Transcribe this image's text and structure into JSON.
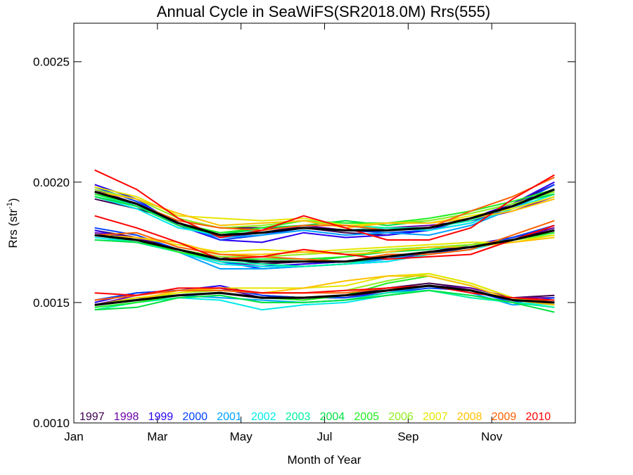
{
  "chart_data": {
    "type": "line",
    "title": "Annual Cycle in SeaWiFS(SR2018.0M) Rrs(555)",
    "xlabel": "Month of Year",
    "ylabel_main": "Rrs (str",
    "ylabel_sup": "-1",
    "ylabel_close": ")",
    "xlim": [
      0,
      12
    ],
    "ylim": [
      0.001,
      0.00266
    ],
    "x_ticks": [
      {
        "value": 0,
        "label": "Jan"
      },
      {
        "value": 2,
        "label": "Mar"
      },
      {
        "value": 4,
        "label": "May"
      },
      {
        "value": 6,
        "label": "Jul"
      },
      {
        "value": 8,
        "label": "Sep"
      },
      {
        "value": 10,
        "label": "Nov"
      }
    ],
    "y_ticks": [
      {
        "value": 0.001,
        "label": "0.0010"
      },
      {
        "value": 0.0015,
        "label": "0.0015"
      },
      {
        "value": 0.002,
        "label": "0.0020"
      },
      {
        "value": 0.0025,
        "label": "0.0025"
      }
    ],
    "x": [
      0.5,
      1.5,
      2.5,
      3.5,
      4.5,
      5.5,
      6.5,
      7.5,
      8.5,
      9.5,
      10.5,
      11.5
    ],
    "legend_position": "bottom",
    "groups": [
      {
        "climatology": [
          0.00196,
          0.00191,
          0.00183,
          0.00178,
          0.00179,
          0.00181,
          0.0018,
          0.0018,
          0.00181,
          0.00185,
          0.0019,
          0.00197
        ],
        "offsets": [
          [
            -3e-05,
            -2e-05,
            1e-05,
            3e-05,
            2e-05,
            0.0,
            -1e-05,
            -2e-05,
            -1e-05,
            0.0,
            1e-05,
            2e-05
          ],
          [
            1e-05,
            0.0,
            -1e-05,
            -1e-05,
            0.0,
            1e-05,
            0.0,
            1e-05,
            1e-05,
            -1e-05,
            -2e-05,
            -3e-05
          ],
          [
            3e-05,
            2e-05,
            -1e-05,
            -2e-05,
            -4e-05,
            -2e-05,
            -3e-05,
            -2e-05,
            -1e-05,
            0.0,
            1e-05,
            3e-05
          ],
          [
            2e-05,
            1e-05,
            0.0,
            -2e-05,
            -1e-05,
            0.0,
            0.0,
            -1e-05,
            -1e-05,
            -2e-05,
            0.0,
            2e-05
          ],
          [
            0.0,
            -1e-05,
            -1e-05,
            -1e-05,
            -1e-05,
            -1e-05,
            -2e-05,
            -1e-05,
            -3e-05,
            -3e-05,
            -1e-05,
            0.0
          ],
          [
            -2e-05,
            -2e-05,
            -2e-05,
            0.0,
            0.0,
            0.0,
            0.0,
            1e-05,
            -1e-05,
            -2e-05,
            -1e-05,
            -2e-05
          ],
          [
            -1e-05,
            -1e-05,
            0.0,
            1e-05,
            1e-05,
            1e-05,
            2e-05,
            1e-05,
            0.0,
            -1e-05,
            0.0,
            -1e-05
          ],
          [
            -2e-05,
            -1e-05,
            -1e-05,
            0.0,
            2e-05,
            1e-05,
            4e-05,
            2e-05,
            3e-05,
            2e-05,
            1e-05,
            -2e-05
          ],
          [
            -1e-05,
            0.0,
            0.0,
            1e-05,
            2e-05,
            3e-05,
            3e-05,
            3e-05,
            4e-05,
            3e-05,
            2e-05,
            0.0
          ],
          [
            1e-05,
            2e-05,
            2e-05,
            3e-05,
            3e-05,
            3e-05,
            2e-05,
            3e-05,
            3e-05,
            2e-05,
            1e-05,
            -1e-05
          ],
          [
            2e-05,
            3e-05,
            3e-05,
            7e-05,
            5e-05,
            4e-05,
            2e-05,
            3e-05,
            2e-05,
            1e-05,
            -1e-05,
            -3e-05
          ],
          [
            0.0,
            2e-05,
            4e-05,
            4e-05,
            4e-05,
            3e-05,
            1e-05,
            3e-05,
            2e-05,
            0.0,
            -2e-05,
            -4e-05
          ],
          [
            0.0,
            0.0,
            1e-05,
            3e-05,
            1e-05,
            1e-05,
            2e-05,
            0.0,
            0.0,
            3e-05,
            4e-05,
            5e-05
          ],
          [
            9e-05,
            6e-05,
            2e-05,
            -1e-05,
            1e-05,
            5e-05,
            1e-05,
            -4e-05,
            -5e-05,
            -4e-05,
            3e-05,
            6e-05
          ]
        ]
      },
      {
        "climatology": [
          0.00178,
          0.00176,
          0.00172,
          0.00168,
          0.00167,
          0.00167,
          0.00167,
          0.00169,
          0.00171,
          0.00173,
          0.00176,
          0.0018
        ],
        "offsets": [
          [
            2e-05,
            1e-05,
            0.0,
            1e-05,
            -1e-05,
            0.0,
            0.0,
            -1e-05,
            0.0,
            0.0,
            1e-05,
            1e-05
          ],
          [
            1e-05,
            1e-05,
            -1e-05,
            -1e-05,
            -2e-05,
            -1e-05,
            0.0,
            -1e-05,
            -1e-05,
            0.0,
            0.0,
            1e-05
          ],
          [
            2e-05,
            0.0,
            -1e-05,
            -2e-05,
            -2e-05,
            -1e-05,
            0.0,
            -1e-05,
            0.0,
            1e-05,
            1e-05,
            2e-05
          ],
          [
            3e-05,
            2e-05,
            0.0,
            -1e-05,
            -3e-05,
            -2e-05,
            -1e-05,
            -2e-05,
            -1e-05,
            0.0,
            1e-05,
            2e-05
          ],
          [
            0.0,
            0.0,
            -1e-05,
            -4e-05,
            -3e-05,
            -2e-05,
            -1e-05,
            -1e-05,
            0.0,
            0.0,
            0.0,
            0.0
          ],
          [
            -1e-05,
            -1e-05,
            -1e-05,
            -2e-05,
            -2e-05,
            -2e-05,
            -1e-05,
            -2e-05,
            -1e-05,
            -1e-05,
            0.0,
            -2e-05
          ],
          [
            0.0,
            -1e-05,
            -1e-05,
            -1e-05,
            -1e-05,
            -2e-05,
            -1e-05,
            0.0,
            0.0,
            0.0,
            0.0,
            0.0
          ],
          [
            -2e-05,
            -1e-05,
            0.0,
            0.0,
            0.0,
            0.0,
            2e-05,
            2e-05,
            1e-05,
            1e-05,
            0.0,
            -1e-05
          ],
          [
            0.0,
            0.0,
            -1e-05,
            0.0,
            1e-05,
            1e-05,
            2e-05,
            3e-05,
            2e-05,
            1e-05,
            0.0,
            -1e-05
          ],
          [
            0.0,
            0.0,
            0.0,
            1e-05,
            2e-05,
            3e-05,
            4e-05,
            3e-05,
            2e-05,
            1e-05,
            0.0,
            -2e-05
          ],
          [
            0.0,
            1e-05,
            2e-05,
            3e-05,
            5e-05,
            4e-05,
            5e-05,
            4e-05,
            3e-05,
            2e-05,
            -1e-05,
            -2e-05
          ],
          [
            0.0,
            1e-05,
            3e-05,
            2e-05,
            3e-05,
            4e-05,
            3e-05,
            2e-05,
            2e-05,
            0.0,
            -1e-05,
            -3e-05
          ],
          [
            0.0,
            3e-05,
            1e-05,
            2e-05,
            2e-05,
            1e-05,
            0.0,
            1e-05,
            -1e-05,
            -1e-05,
            2e-05,
            4e-05
          ],
          [
            8e-05,
            5e-05,
            3e-05,
            0.0,
            2e-05,
            5e-05,
            3e-05,
            -1e-05,
            -2e-05,
            -3e-05,
            0.0,
            2e-05
          ]
        ]
      },
      {
        "climatology": [
          0.00149,
          0.00151,
          0.00153,
          0.00154,
          0.00152,
          0.00152,
          0.00153,
          0.00155,
          0.00157,
          0.00155,
          0.00151,
          0.0015
        ],
        "offsets": [
          [
            0.0,
            1e-05,
            0.0,
            0.0,
            0.0,
            0.0,
            0.0,
            1e-05,
            1e-05,
            1e-05,
            1e-05,
            3e-05
          ],
          [
            0.0,
            2e-05,
            2e-05,
            2e-05,
            0.0,
            0.0,
            -1e-05,
            0.0,
            0.0,
            1e-05,
            1e-05,
            2e-05
          ],
          [
            1e-05,
            3e-05,
            2e-05,
            3e-05,
            1e-05,
            0.0,
            0.0,
            0.0,
            0.0,
            0.0,
            0.0,
            1e-05
          ],
          [
            2e-05,
            3e-05,
            2e-05,
            2e-05,
            1e-05,
            0.0,
            -1e-05,
            -1e-05,
            -1e-05,
            0.0,
            -1e-05,
            2e-05
          ],
          [
            0.0,
            0.0,
            0.0,
            -2e-05,
            -1e-05,
            -2e-05,
            -2e-05,
            -1e-05,
            0.0,
            -1e-05,
            -2e-05,
            0.0
          ],
          [
            -1e-05,
            -1e-05,
            -1e-05,
            -3e-05,
            -5e-05,
            -3e-05,
            -3e-05,
            -2e-05,
            -2e-05,
            -2e-05,
            -1e-05,
            -1e-05
          ],
          [
            -2e-05,
            -1e-05,
            -1e-05,
            -1e-05,
            -2e-05,
            -2e-05,
            -2e-05,
            -1e-05,
            -2e-05,
            -3e-05,
            -1e-05,
            -2e-05
          ],
          [
            -2e-05,
            -3e-05,
            -1e-05,
            -1e-05,
            -2e-05,
            -2e-05,
            -2e-05,
            -2e-05,
            -2e-05,
            -2e-05,
            -1e-05,
            -4e-05
          ],
          [
            -1e-05,
            -1e-05,
            0.0,
            0.0,
            0.0,
            -1e-05,
            0.0,
            3e-05,
            4e-05,
            2e-05,
            0.0,
            -1e-05
          ],
          [
            0.0,
            0.0,
            1e-05,
            1e-05,
            2e-05,
            2e-05,
            2e-05,
            4e-05,
            5e-05,
            3e-05,
            1e-05,
            0.0
          ],
          [
            0.0,
            1e-05,
            1e-05,
            2e-05,
            4e-05,
            4e-05,
            4e-05,
            6e-05,
            5e-05,
            3e-05,
            1e-05,
            -1e-05
          ],
          [
            0.0,
            0.0,
            2e-05,
            2e-05,
            2e-05,
            4e-05,
            6e-05,
            6e-05,
            4e-05,
            2e-05,
            0.0,
            -1e-05
          ],
          [
            2e-05,
            2e-05,
            2e-05,
            1e-05,
            2e-05,
            2e-05,
            1e-05,
            1e-05,
            0.0,
            0.0,
            0.0,
            1e-05
          ],
          [
            5e-05,
            2e-05,
            3e-05,
            2e-05,
            2e-05,
            2e-05,
            2e-05,
            1e-05,
            0.0,
            -1e-05,
            1e-05,
            1e-05
          ]
        ]
      }
    ],
    "series": [
      {
        "name": "1997",
        "color": "#3d004d"
      },
      {
        "name": "1998",
        "color": "#6a00a8"
      },
      {
        "name": "1999",
        "color": "#2a00f0"
      },
      {
        "name": "2000",
        "color": "#0040ff"
      },
      {
        "name": "2001",
        "color": "#00a0ff"
      },
      {
        "name": "2002",
        "color": "#00eaea"
      },
      {
        "name": "2003",
        "color": "#00f0a0"
      },
      {
        "name": "2004",
        "color": "#00e040"
      },
      {
        "name": "2005",
        "color": "#20ee20"
      },
      {
        "name": "2006",
        "color": "#90ee20"
      },
      {
        "name": "2007",
        "color": "#e6e600"
      },
      {
        "name": "2008",
        "color": "#ffc000"
      },
      {
        "name": "2009",
        "color": "#ff6000"
      },
      {
        "name": "2010",
        "color": "#ff0000"
      }
    ],
    "climatology_color": "#000000"
  }
}
